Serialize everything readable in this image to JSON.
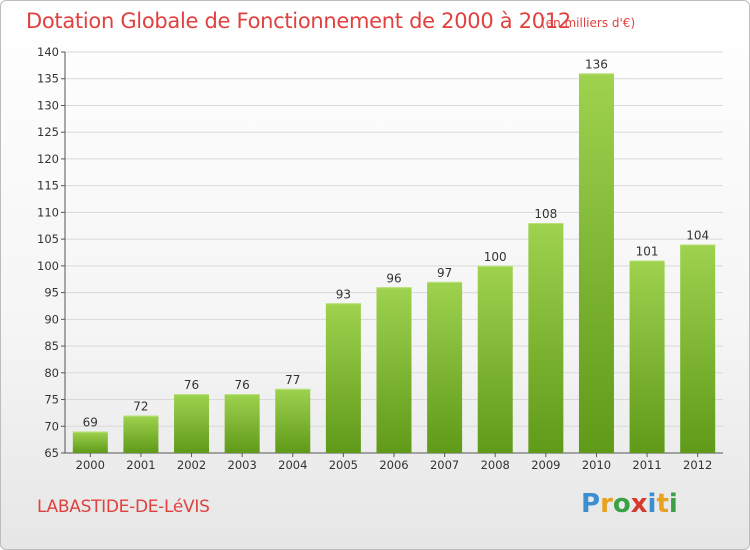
{
  "title": "Dotation Globale de Fonctionnement de 2000 à 2012",
  "subtitle": "(en milliers d'€)",
  "city": "LABASTIDE-DE-LéVIS",
  "logo": {
    "letters": [
      "P",
      "r",
      "o",
      "x",
      "i",
      "t",
      "i"
    ],
    "colors": [
      "#3b8fd1",
      "#e8a21f",
      "#3aa244",
      "#d63a2c",
      "#3b8fd1",
      "#e8a21f",
      "#3aa244"
    ]
  },
  "colors": {
    "bar_top": "#9ed24f",
    "bar_bottom": "#5f9a18",
    "title": "#e0413f",
    "grid": "#d9d9d9"
  },
  "chart_data": {
    "type": "bar",
    "title": "Dotation Globale de Fonctionnement de 2000 à 2012",
    "categories": [
      "2000",
      "2001",
      "2002",
      "2003",
      "2004",
      "2005",
      "2006",
      "2007",
      "2008",
      "2009",
      "2010",
      "2011",
      "2012"
    ],
    "values": [
      69,
      72,
      76,
      76,
      77,
      93,
      96,
      97,
      100,
      108,
      136,
      101,
      104
    ],
    "ylim": [
      65,
      140
    ],
    "yticks": [
      65,
      70,
      75,
      80,
      85,
      90,
      95,
      100,
      105,
      110,
      115,
      120,
      125,
      130,
      135,
      140
    ],
    "grid": true,
    "legend": "none"
  }
}
